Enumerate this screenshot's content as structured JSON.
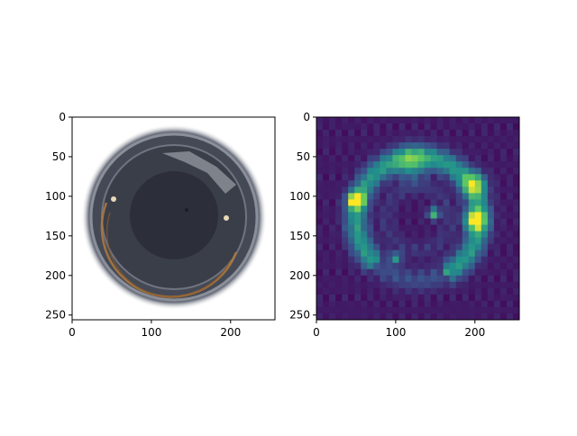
{
  "chart_data": [
    {
      "type": "heatmap",
      "image_content": "photo of circular object with dark center on white background",
      "x_ticks": [
        0,
        100,
        200
      ],
      "y_ticks": [
        0,
        50,
        100,
        150,
        200,
        250
      ],
      "xlim": [
        0,
        256
      ],
      "ylim": [
        256,
        0
      ],
      "grid": false
    },
    {
      "type": "heatmap",
      "colormap": "viridis",
      "x_ticks": [
        0,
        100,
        200
      ],
      "y_ticks": [
        0,
        50,
        100,
        150,
        200,
        250
      ],
      "xlim": [
        0,
        256
      ],
      "ylim": [
        256,
        0
      ],
      "grid": false
    }
  ],
  "colors": {
    "viridis_dark": "#440154",
    "viridis_mid": "#2a788e",
    "viridis_bright": "#fde725",
    "object_dark": "#2c2f3a",
    "ring_gray": "#5a5f6b"
  }
}
